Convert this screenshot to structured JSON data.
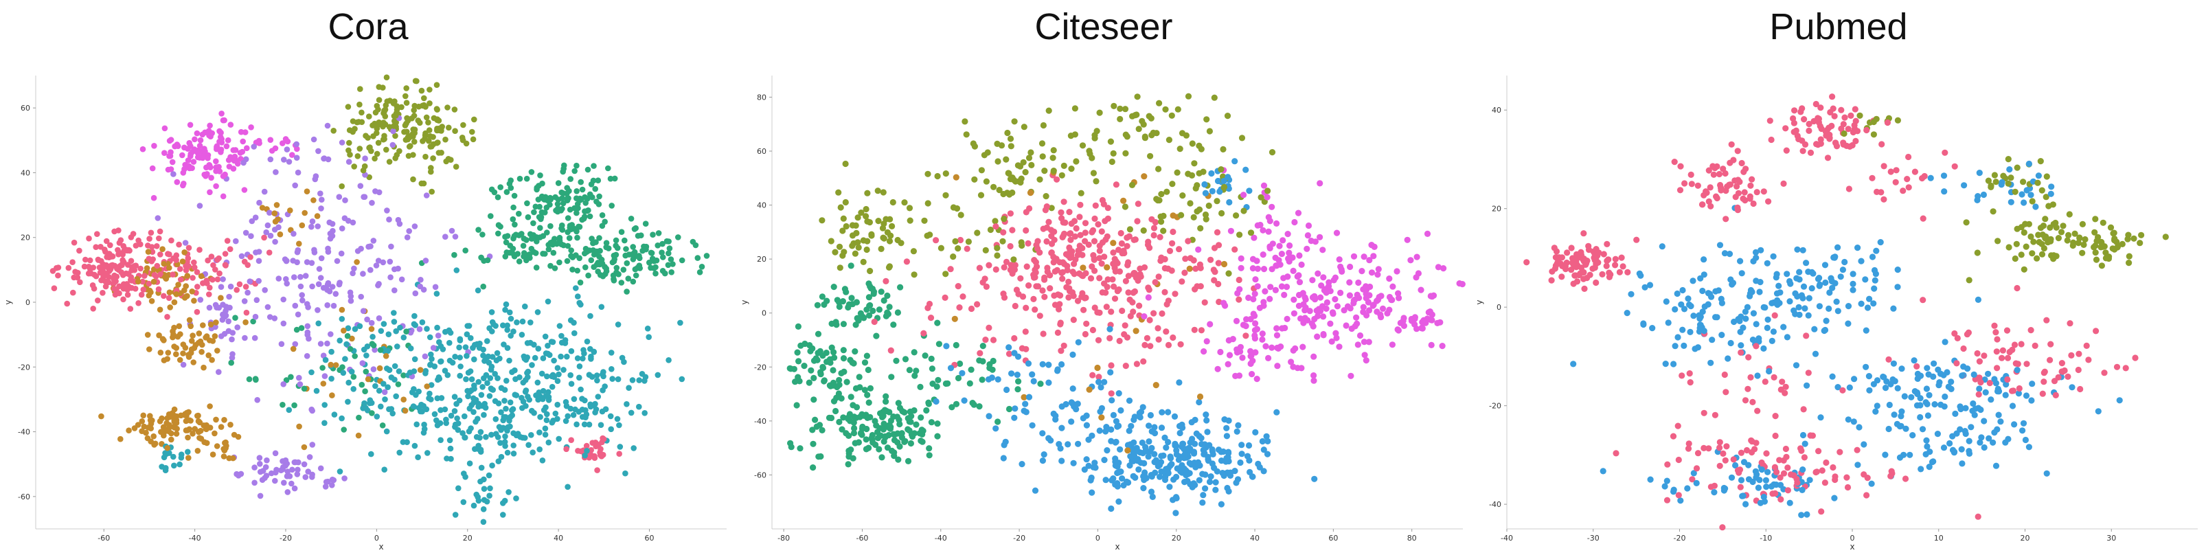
{
  "palette": {
    "pink": "#ef6086",
    "brown": "#c48a2c",
    "olive": "#8a9e2c",
    "green": "#2ca87a",
    "teal": "#2fa7b6",
    "blue": "#3a9ddd",
    "lilac": "#a77ce8",
    "magenta": "#e65be2"
  },
  "chart_data": [
    {
      "type": "scatter",
      "title": "Cora",
      "xlabel": "x",
      "ylabel": "y",
      "xlim": [
        -75,
        77
      ],
      "ylim": [
        -70,
        70
      ],
      "xticks": [
        -60,
        -40,
        -20,
        0,
        20,
        40,
        60
      ],
      "yticks": [
        -60,
        -40,
        -20,
        0,
        20,
        40,
        60
      ],
      "grid": false,
      "legend": "none",
      "marker_size": 4.3,
      "clusters": [
        {
          "color": "magenta",
          "cx": -37,
          "cy": 46,
          "sx": 6,
          "sy": 5,
          "n": 120
        },
        {
          "color": "magenta",
          "cx": -22,
          "cy": 48,
          "sx": 4,
          "sy": 3,
          "n": 10
        },
        {
          "color": "olive",
          "cx": 6,
          "cy": 53,
          "sx": 7,
          "sy": 6,
          "n": 180
        },
        {
          "color": "pink",
          "cx": -57,
          "cy": 11,
          "sx": 6,
          "sy": 5,
          "n": 160
        },
        {
          "color": "pink",
          "cx": -40,
          "cy": 10,
          "sx": 7,
          "sy": 6,
          "n": 70
        },
        {
          "color": "pink",
          "cx": 47,
          "cy": -46,
          "sx": 3,
          "sy": 2,
          "n": 30
        },
        {
          "color": "brown",
          "cx": -45,
          "cy": 6,
          "sx": 5,
          "sy": 5,
          "n": 60
        },
        {
          "color": "brown",
          "cx": -42,
          "cy": -12,
          "sx": 4,
          "sy": 4,
          "n": 50
        },
        {
          "color": "brown",
          "cx": -43,
          "cy": -38,
          "sx": 6,
          "sy": 3,
          "n": 90
        },
        {
          "color": "brown",
          "cx": -33,
          "cy": -45,
          "sx": 2,
          "sy": 2,
          "n": 15
        },
        {
          "color": "brown",
          "cx": -18,
          "cy": 28,
          "sx": 3,
          "sy": 4,
          "n": 15
        },
        {
          "color": "brown",
          "cx": -10,
          "cy": -25,
          "sx": 10,
          "sy": 14,
          "n": 25
        },
        {
          "color": "lilac",
          "cx": -10,
          "cy": 10,
          "sx": 14,
          "sy": 18,
          "n": 220
        },
        {
          "color": "lilac",
          "cx": -20,
          "cy": -53,
          "sx": 5,
          "sy": 3,
          "n": 55
        },
        {
          "color": "lilac",
          "cx": -33,
          "cy": -5,
          "sx": 4,
          "sy": 6,
          "n": 25
        },
        {
          "color": "lilac",
          "cx": -15,
          "cy": 45,
          "sx": 6,
          "sy": 3,
          "n": 12
        },
        {
          "color": "green",
          "cx": 40,
          "cy": 32,
          "sx": 7,
          "sy": 6,
          "n": 120
        },
        {
          "color": "green",
          "cx": 56,
          "cy": 14,
          "sx": 8,
          "sy": 4,
          "n": 120
        },
        {
          "color": "green",
          "cx": 35,
          "cy": 18,
          "sx": 8,
          "sy": 5,
          "n": 80
        },
        {
          "color": "green",
          "cx": -8,
          "cy": -22,
          "sx": 12,
          "sy": 10,
          "n": 40
        },
        {
          "color": "teal",
          "cx": 26,
          "cy": -22,
          "sx": 13,
          "sy": 11,
          "n": 220
        },
        {
          "color": "teal",
          "cx": 42,
          "cy": -26,
          "sx": 9,
          "sy": 10,
          "n": 120
        },
        {
          "color": "teal",
          "cx": 22,
          "cy": -40,
          "sx": 8,
          "sy": 8,
          "n": 80
        },
        {
          "color": "teal",
          "cx": 2,
          "cy": -22,
          "sx": 9,
          "sy": 12,
          "n": 90
        },
        {
          "color": "teal",
          "cx": 24,
          "cy": -60,
          "sx": 3,
          "sy": 3,
          "n": 20
        },
        {
          "color": "teal",
          "cx": -45,
          "cy": -47,
          "sx": 3,
          "sy": 2,
          "n": 15
        }
      ]
    },
    {
      "type": "scatter",
      "title": "Citeseer",
      "xlabel": "x",
      "ylabel": "y",
      "xlim": [
        -83,
        93
      ],
      "ylim": [
        -80,
        88
      ],
      "xticks": [
        -80,
        -60,
        -40,
        -20,
        0,
        20,
        40,
        60,
        80
      ],
      "yticks": [
        -60,
        -40,
        -20,
        0,
        20,
        40,
        60,
        80
      ],
      "grid": false,
      "legend": "none",
      "marker_size": 4.6,
      "clusters": [
        {
          "color": "olive",
          "cx": 10,
          "cy": 70,
          "sx": 10,
          "sy": 6,
          "n": 50
        },
        {
          "color": "olive",
          "cx": -20,
          "cy": 55,
          "sx": 8,
          "sy": 7,
          "n": 60
        },
        {
          "color": "olive",
          "cx": -58,
          "cy": 30,
          "sx": 6,
          "sy": 8,
          "n": 60
        },
        {
          "color": "olive",
          "cx": 25,
          "cy": 45,
          "sx": 10,
          "sy": 10,
          "n": 60
        },
        {
          "color": "olive",
          "cx": -35,
          "cy": 30,
          "sx": 10,
          "sy": 8,
          "n": 30
        },
        {
          "color": "pink",
          "cx": -5,
          "cy": 20,
          "sx": 11,
          "sy": 12,
          "n": 220
        },
        {
          "color": "pink",
          "cx": 20,
          "cy": 15,
          "sx": 10,
          "sy": 12,
          "n": 60
        },
        {
          "color": "pink",
          "cx": -30,
          "cy": 5,
          "sx": 12,
          "sy": 12,
          "n": 40
        },
        {
          "color": "pink",
          "cx": 5,
          "cy": -10,
          "sx": 12,
          "sy": 10,
          "n": 40
        },
        {
          "color": "magenta",
          "cx": 60,
          "cy": 5,
          "sx": 14,
          "sy": 10,
          "n": 200
        },
        {
          "color": "magenta",
          "cx": 45,
          "cy": 25,
          "sx": 6,
          "sy": 12,
          "n": 50
        },
        {
          "color": "magenta",
          "cx": 82,
          "cy": -3,
          "sx": 3,
          "sy": 2,
          "n": 25
        },
        {
          "color": "magenta",
          "cx": 40,
          "cy": -15,
          "sx": 6,
          "sy": 6,
          "n": 40
        },
        {
          "color": "green",
          "cx": -57,
          "cy": -44,
          "sx": 8,
          "sy": 6,
          "n": 140
        },
        {
          "color": "green",
          "cx": -70,
          "cy": -20,
          "sx": 6,
          "sy": 7,
          "n": 70
        },
        {
          "color": "green",
          "cx": -60,
          "cy": 3,
          "sx": 5,
          "sy": 5,
          "n": 50
        },
        {
          "color": "green",
          "cx": -38,
          "cy": -25,
          "sx": 10,
          "sy": 10,
          "n": 50
        },
        {
          "color": "blue",
          "cx": 20,
          "cy": -55,
          "sx": 12,
          "sy": 7,
          "n": 250
        },
        {
          "color": "blue",
          "cx": 0,
          "cy": -40,
          "sx": 12,
          "sy": 10,
          "n": 60
        },
        {
          "color": "blue",
          "cx": 32,
          "cy": 48,
          "sx": 3,
          "sy": 4,
          "n": 20
        },
        {
          "color": "blue",
          "cx": -20,
          "cy": -30,
          "sx": 10,
          "sy": 10,
          "n": 40
        },
        {
          "color": "brown",
          "cx": 5,
          "cy": 10,
          "sx": 25,
          "sy": 25,
          "n": 25
        }
      ]
    },
    {
      "type": "scatter",
      "title": "Pubmed",
      "xlabel": "x",
      "ylabel": "y",
      "xlim": [
        -40,
        40
      ],
      "ylim": [
        -45,
        47
      ],
      "xticks": [
        -40,
        -30,
        -20,
        -10,
        0,
        10,
        20,
        30
      ],
      "yticks": [
        -40,
        -20,
        0,
        20,
        40
      ],
      "grid": false,
      "legend": "none",
      "marker_size": 4.6,
      "clusters": [
        {
          "color": "pink",
          "cx": -31,
          "cy": 9,
          "sx": 2.5,
          "sy": 2,
          "n": 90
        },
        {
          "color": "pink",
          "cx": -3,
          "cy": 36,
          "sx": 3,
          "sy": 3,
          "n": 70
        },
        {
          "color": "pink",
          "cx": -15,
          "cy": 25,
          "sx": 2.5,
          "sy": 3,
          "n": 60
        },
        {
          "color": "pink",
          "cx": -8,
          "cy": -33,
          "sx": 7,
          "sy": 4,
          "n": 90
        },
        {
          "color": "pink",
          "cx": 20,
          "cy": -12,
          "sx": 6,
          "sy": 5,
          "n": 70
        },
        {
          "color": "pink",
          "cx": -12,
          "cy": -15,
          "sx": 5,
          "sy": 5,
          "n": 30
        },
        {
          "color": "pink",
          "cx": 5,
          "cy": 25,
          "sx": 4,
          "sy": 4,
          "n": 20
        },
        {
          "color": "olive",
          "cx": 22,
          "cy": 14,
          "sx": 3,
          "sy": 4,
          "n": 60
        },
        {
          "color": "olive",
          "cx": 30,
          "cy": 13,
          "sx": 2.5,
          "sy": 2,
          "n": 40
        },
        {
          "color": "olive",
          "cx": 18,
          "cy": 26,
          "sx": 3,
          "sy": 2,
          "n": 20
        },
        {
          "color": "olive",
          "cx": 2,
          "cy": 37,
          "sx": 2,
          "sy": 2,
          "n": 10
        },
        {
          "color": "blue",
          "cx": -12,
          "cy": 0,
          "sx": 6,
          "sy": 6,
          "n": 150
        },
        {
          "color": "blue",
          "cx": 10,
          "cy": -22,
          "sx": 7,
          "sy": 7,
          "n": 170
        },
        {
          "color": "blue",
          "cx": -12,
          "cy": -35,
          "sx": 5,
          "sy": 3,
          "n": 60
        },
        {
          "color": "blue",
          "cx": -2,
          "cy": 5,
          "sx": 4,
          "sy": 4,
          "n": 50
        },
        {
          "color": "blue",
          "cx": 18,
          "cy": 25,
          "sx": 4,
          "sy": 2,
          "n": 25
        }
      ]
    }
  ]
}
